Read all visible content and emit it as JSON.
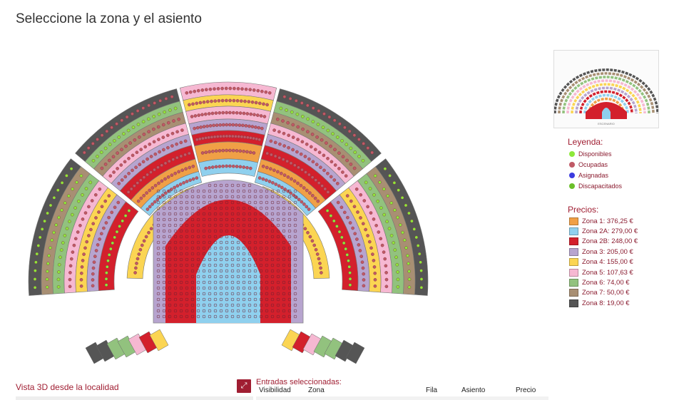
{
  "page": {
    "title": "Seleccione la zona y el asiento"
  },
  "colors": {
    "accent": "#a01e32",
    "zone1": "#f0a046",
    "zone2a": "#8fd0ee",
    "zone2b": "#d3202c",
    "zone3": "#b7a4cf",
    "zone4": "#fbd553",
    "zone5": "#f6b8d2",
    "zone6": "#92c27e",
    "zone7": "#a88f73",
    "zone8": "#555555",
    "available": "#8de83a",
    "occupied": "#c05a66",
    "assigned": "#3b3bdf",
    "disabled": "#6bbf2a"
  },
  "legend": {
    "title": "Leyenda:",
    "items": [
      {
        "label": "Disponibles",
        "color": "#8de83a",
        "icon": "available-dot"
      },
      {
        "label": "Ocupadas",
        "color": "#c05a66",
        "icon": "occupied-dot"
      },
      {
        "label": "Asignadas",
        "color": "#3b3bdf",
        "icon": "assigned-dot"
      },
      {
        "label": "Discapacitados",
        "color": "#6bbf2a",
        "icon": "wheelchair-icon"
      }
    ]
  },
  "prices": {
    "title": "Precios:",
    "items": [
      {
        "label": "Zona 1: 376,25 €",
        "color": "#f0a046"
      },
      {
        "label": "Zona 2A: 279,00 €",
        "color": "#8fd0ee"
      },
      {
        "label": "Zona 2B: 248,00 €",
        "color": "#d3202c"
      },
      {
        "label": "Zona 3: 205,00 €",
        "color": "#b7a4cf"
      },
      {
        "label": "Zona 4: 155,00 €",
        "color": "#fbd553"
      },
      {
        "label": "Zona 5: 107,63 €",
        "color": "#f6b8d2"
      },
      {
        "label": "Zona 6: 74,00 €",
        "color": "#92c27e"
      },
      {
        "label": "Zona 7: 50,00 €",
        "color": "#a88f73"
      },
      {
        "label": "Zona 8: 19,00 €",
        "color": "#555555"
      }
    ]
  },
  "minimap": {
    "stage_label": "ESCENARIO"
  },
  "bottom": {
    "view3d_title": "Vista 3D desde la localidad",
    "expand_icon": "expand-icon",
    "selected_title": "Entradas seleccionadas:",
    "columns": [
      "Visibilidad",
      "Zona",
      "Fila",
      "Asiento",
      "Precio"
    ]
  }
}
